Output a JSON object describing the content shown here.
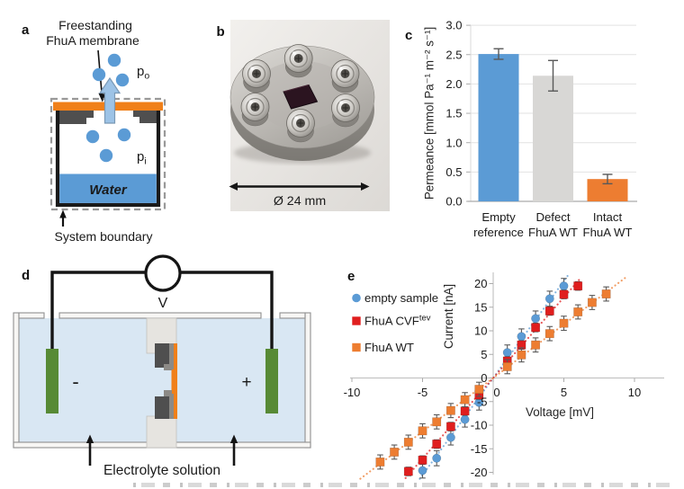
{
  "colors": {
    "series_blue": "#5B9BD5",
    "series_red": "#E01E1E",
    "series_orange": "#ED7D31",
    "bar_gray": "#D8D7D5",
    "membrane_orange": "#F08019",
    "silicon_gray": "#4F4F4F",
    "water_blue": "#5B9BD5",
    "electrolyte_blue": "#D9E7F3",
    "electrode_green": "#578A35",
    "arrow_blue": "#9DC3E6"
  },
  "panel_a": {
    "letter": "a",
    "label_line1": "Freestanding",
    "label_line2": "FhuA membrane",
    "pressure_outside_base": "p",
    "pressure_outside_sub": "o",
    "pressure_inside_base": "p",
    "pressure_inside_sub": "i",
    "water_label": "Water",
    "boundary_label": "System boundary"
  },
  "panel_b": {
    "letter": "b",
    "diameter_label": "Ø 24 mm"
  },
  "panel_c": {
    "letter": "c"
  },
  "panel_d": {
    "letter": "d",
    "voltmeter_label": "V",
    "negative_label": "-",
    "positive_label": "+",
    "solution_label": "Electrolyte solution"
  },
  "panel_e": {
    "letter": "e"
  },
  "chart_data": [
    {
      "id": "permeance-bar-chart",
      "type": "bar",
      "title": "",
      "xlabel": "",
      "ylabel": "Permeance [mmol Pa⁻¹ m⁻² s⁻¹]",
      "ylim": [
        0,
        3.0
      ],
      "yticks": [
        0,
        0.5,
        1.0,
        1.5,
        2.0,
        2.5,
        3.0
      ],
      "grid": true,
      "legend_position": "none",
      "categories": [
        "Empty reference",
        "Defect FhuA WT",
        "Intact FhuA WT"
      ],
      "category_lines": [
        [
          "Empty",
          "reference"
        ],
        [
          "Defect",
          "FhuA WT"
        ],
        [
          "Intact",
          "FhuA WT"
        ]
      ],
      "values": [
        2.51,
        2.14,
        0.38
      ],
      "errors": [
        0.09,
        0.26,
        0.08
      ],
      "bar_colors": [
        "#5B9BD5",
        "#D8D7D5",
        "#ED7D31"
      ]
    },
    {
      "id": "iv-scatter-chart",
      "type": "scatter",
      "title": "",
      "xlabel": "Voltage [mV]",
      "ylabel": "Current [nA]",
      "xlim": [
        -10,
        10
      ],
      "ylim": [
        -20,
        20
      ],
      "xticks": [
        -10,
        -5,
        0,
        5,
        10
      ],
      "yticks": [
        -20,
        -15,
        -10,
        -5,
        0,
        5,
        10,
        15,
        20
      ],
      "grid": false,
      "legend_position": "left",
      "series": [
        {
          "name": "empty sample",
          "name_sup": "",
          "marker": "circle",
          "color": "#5B9BD5",
          "yerr": 1.6,
          "trend_range": [
            -5.2,
            5.3
          ],
          "x": [
            -5,
            -4,
            -3,
            -2,
            -1,
            1,
            2,
            3,
            4,
            5
          ],
          "y": [
            -19.6,
            -17.0,
            -12.6,
            -8.8,
            -5.2,
            5.4,
            8.8,
            12.6,
            16.8,
            19.5
          ]
        },
        {
          "name": "FhuA CVF",
          "name_sup": "tev",
          "marker": "square",
          "color": "#E01E1E",
          "yerr": 0.9,
          "trend_range": [
            -6.2,
            6.2
          ],
          "x": [
            -6,
            -5,
            -4,
            -3,
            -2,
            -1,
            1,
            2,
            3,
            4,
            5,
            6
          ],
          "y": [
            -19.8,
            -17.4,
            -14.0,
            -10.3,
            -7.0,
            -3.6,
            3.6,
            7.0,
            10.7,
            14.2,
            17.7,
            19.5
          ]
        },
        {
          "name": "FhuA WT",
          "name_sup": "",
          "marker": "square",
          "color": "#ED7D31",
          "yerr": 1.5,
          "trend_range": [
            -9.4,
            9.4
          ],
          "x": [
            -8,
            -7,
            -6,
            -5,
            -4,
            -3,
            -2,
            -1,
            1,
            2,
            3,
            4,
            5,
            6,
            7,
            8
          ],
          "y": [
            -17.8,
            -15.7,
            -13.6,
            -11.2,
            -9.3,
            -6.9,
            -4.6,
            -2.4,
            2.4,
            4.9,
            7.0,
            9.4,
            11.6,
            14.0,
            16.0,
            17.8
          ]
        }
      ]
    }
  ]
}
